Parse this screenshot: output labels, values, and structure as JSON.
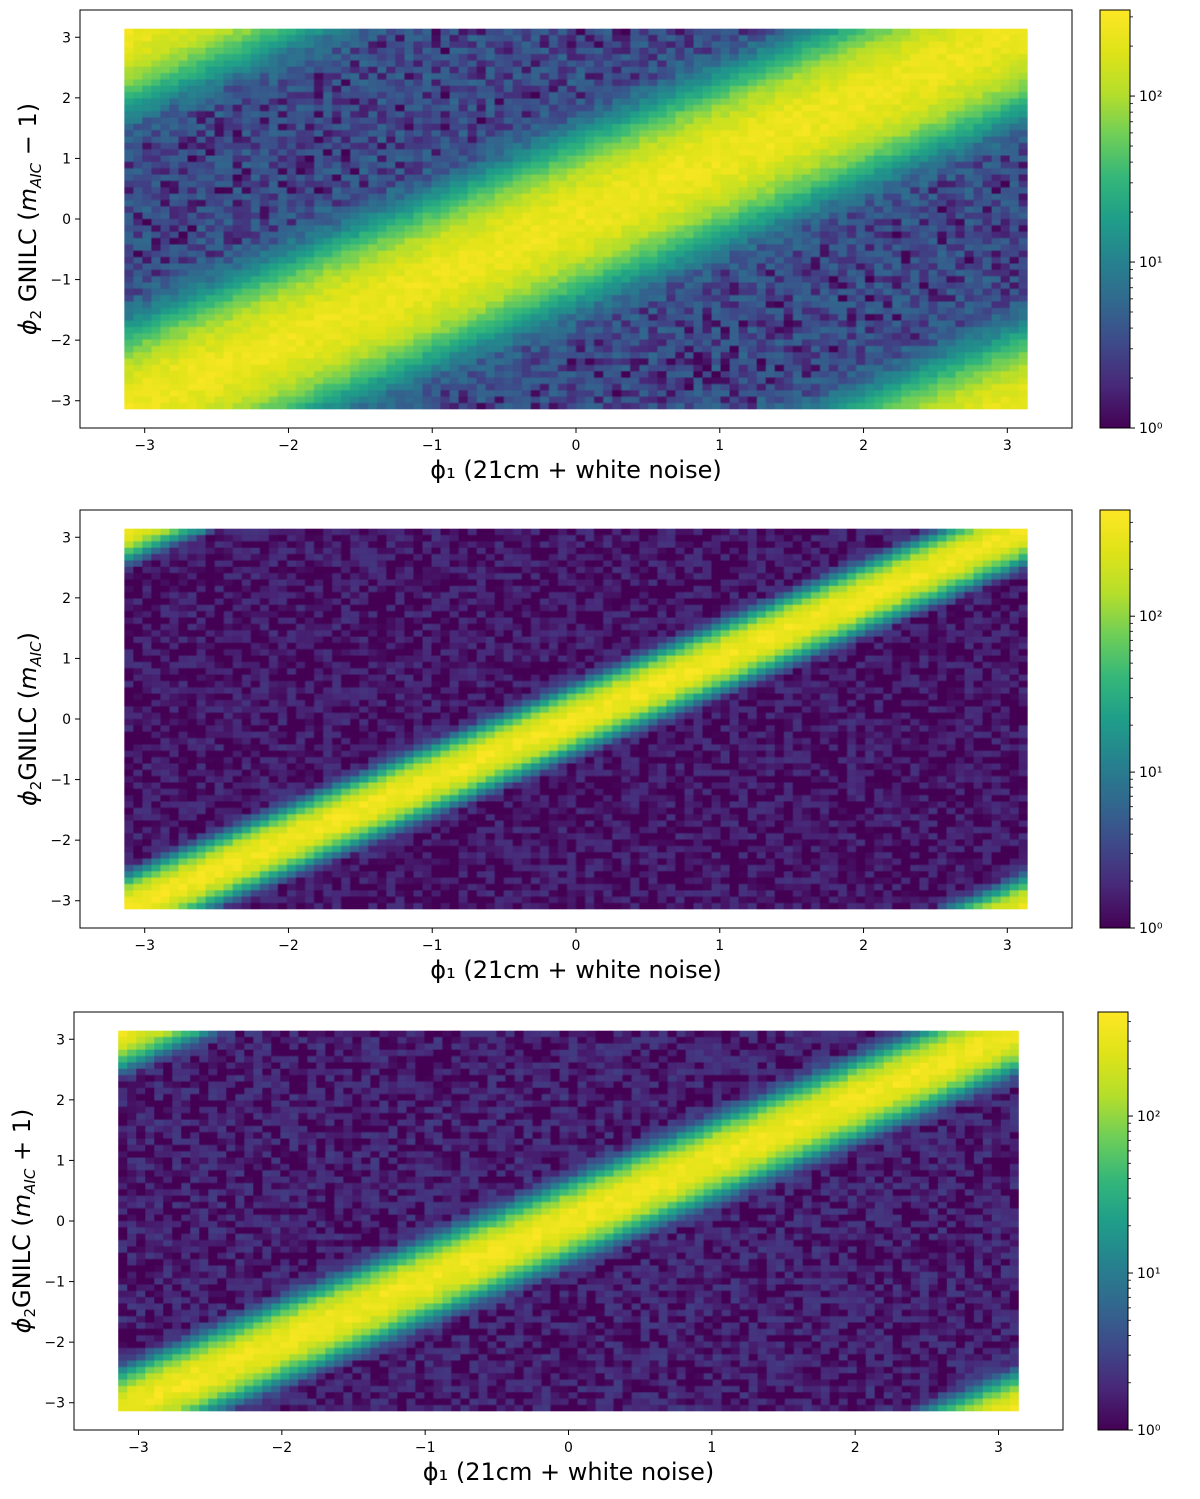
{
  "chart_data": [
    {
      "type": "heatmap",
      "subtype": "hexbin",
      "xlabel": "ϕ₁ (21cm + white noise)",
      "ylabel": "ϕ₂ GNILC (m_AIC − 1)",
      "ylabel_parts": {
        "pre": "ϕ",
        "sub1": "2",
        "mid": " GNILC (",
        "mi": "m",
        "sub2": "AIC",
        "post": " − 1)"
      },
      "xlim": [
        -3.45,
        3.45
      ],
      "ylim": [
        -3.45,
        3.45
      ],
      "xticks": [
        "−3",
        "−2",
        "−1",
        "0",
        "1",
        "2",
        "3"
      ],
      "yticks": [
        "−3",
        "−2",
        "−1",
        "0",
        "1",
        "2",
        "3"
      ],
      "x": {
        "min": -3.1416,
        "max": 3.1416
      },
      "y": {
        "min": -3.1416,
        "max": 3.1416
      },
      "correlation": "positive diagonal y ≈ x, broad",
      "diagonal_width_rad": 0.55,
      "peak_count": 300,
      "background_count": 3,
      "colorbar": {
        "scale": "log",
        "min": 1,
        "max": 330,
        "colormap": "viridis",
        "ticks": [
          "10⁰",
          "10¹",
          "10²"
        ]
      }
    },
    {
      "type": "heatmap",
      "subtype": "hexbin",
      "xlabel": "ϕ₁ (21cm + white noise)",
      "ylabel": "ϕ₂GNILC (m_AIC)",
      "ylabel_parts": {
        "pre": "ϕ",
        "sub1": "2",
        "mid": "GNILC (",
        "mi": "m",
        "sub2": "AIC",
        "post": ")"
      },
      "xlim": [
        -3.45,
        3.45
      ],
      "ylim": [
        -3.45,
        3.45
      ],
      "xticks": [
        "−3",
        "−2",
        "−1",
        "0",
        "1",
        "2",
        "3"
      ],
      "yticks": [
        "−3",
        "−2",
        "−1",
        "0",
        "1",
        "2",
        "3"
      ],
      "x": {
        "min": -3.1416,
        "max": 3.1416
      },
      "y": {
        "min": -3.1416,
        "max": 3.1416
      },
      "correlation": "positive diagonal y ≈ x, narrow",
      "diagonal_width_rad": 0.2,
      "peak_count": 480,
      "background_count": 1.2,
      "colorbar": {
        "scale": "log",
        "min": 1,
        "max": 480,
        "colormap": "viridis",
        "ticks": [
          "10⁰",
          "10¹",
          "10²"
        ]
      }
    },
    {
      "type": "heatmap",
      "subtype": "hexbin",
      "xlabel": "ϕ₁ (21cm + white noise)",
      "ylabel": "ϕ₂GNILC (m_AIC + 1)",
      "ylabel_parts": {
        "pre": "ϕ",
        "sub1": "2",
        "mid": "GNILC (",
        "mi": "m",
        "sub2": "AIC",
        "post": " + 1)"
      },
      "xlim": [
        -3.45,
        3.45
      ],
      "ylim": [
        -3.45,
        3.45
      ],
      "xticks": [
        "−3",
        "−2",
        "−1",
        "0",
        "1",
        "2",
        "3"
      ],
      "yticks": [
        "−3",
        "−2",
        "−1",
        "0",
        "1",
        "2",
        "3"
      ],
      "x": {
        "min": -3.1416,
        "max": 3.1416
      },
      "y": {
        "min": -3.1416,
        "max": 3.1416
      },
      "correlation": "positive diagonal y ≈ x, narrow",
      "diagonal_width_rad": 0.24,
      "peak_count": 460,
      "background_count": 1.4,
      "colorbar": {
        "scale": "log",
        "min": 1,
        "max": 460,
        "colormap": "viridis",
        "ticks": [
          "10⁰",
          "10¹",
          "10²"
        ]
      }
    }
  ]
}
